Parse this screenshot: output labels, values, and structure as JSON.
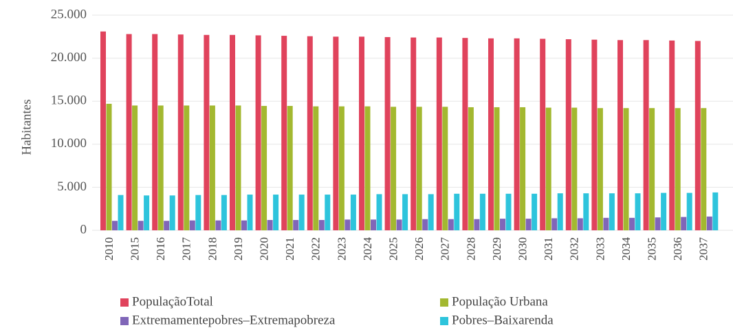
{
  "chart_data": {
    "type": "bar",
    "y_label": "Habitantes",
    "categories": [
      "2010",
      "2015",
      "2016",
      "2017",
      "2018",
      "2019",
      "2020",
      "2021",
      "2022",
      "2023",
      "2024",
      "2025",
      "2026",
      "2027",
      "2028",
      "2029",
      "2030",
      "2031",
      "2032",
      "2033",
      "2034",
      "2035",
      "2036",
      "2037"
    ],
    "series": [
      {
        "name": "PopulaçãoTotal",
        "color": "#e0435c",
        "values": [
          23100,
          22800,
          22800,
          22750,
          22700,
          22700,
          22650,
          22600,
          22550,
          22500,
          22500,
          22450,
          22400,
          22400,
          22350,
          22300,
          22300,
          22250,
          22200,
          22150,
          22100,
          22100,
          22050,
          22000
        ]
      },
      {
        "name": "População Urbana",
        "color": "#a3b830",
        "values": [
          14700,
          14500,
          14500,
          14500,
          14500,
          14500,
          14450,
          14450,
          14400,
          14400,
          14400,
          14350,
          14350,
          14350,
          14300,
          14300,
          14300,
          14250,
          14250,
          14200,
          14200,
          14200,
          14200,
          14200
        ]
      },
      {
        "name": "Extremamentepobres–Extremapobreza",
        "color": "#8066b8",
        "values": [
          1100,
          1100,
          1100,
          1150,
          1150,
          1150,
          1200,
          1200,
          1200,
          1250,
          1250,
          1250,
          1300,
          1300,
          1300,
          1350,
          1350,
          1400,
          1400,
          1450,
          1450,
          1500,
          1550,
          1600
        ]
      },
      {
        "name": "Pobres–Baixarenda",
        "color": "#2ec4dc",
        "values": [
          4100,
          4050,
          4050,
          4100,
          4100,
          4150,
          4150,
          4150,
          4150,
          4150,
          4200,
          4200,
          4200,
          4250,
          4250,
          4250,
          4250,
          4300,
          4300,
          4300,
          4300,
          4350,
          4350,
          4400
        ]
      }
    ],
    "ylim": [
      0,
      25000
    ],
    "yticks": [
      0,
      {
        "value": 5000,
        "label": "5.000"
      },
      {
        "value": 10000,
        "label": "10.000"
      },
      {
        "value": 15000,
        "label": "15.000"
      },
      {
        "value": 20000,
        "label": "20.000"
      },
      {
        "value": 25000,
        "label": "25.000"
      }
    ],
    "grid": true
  }
}
